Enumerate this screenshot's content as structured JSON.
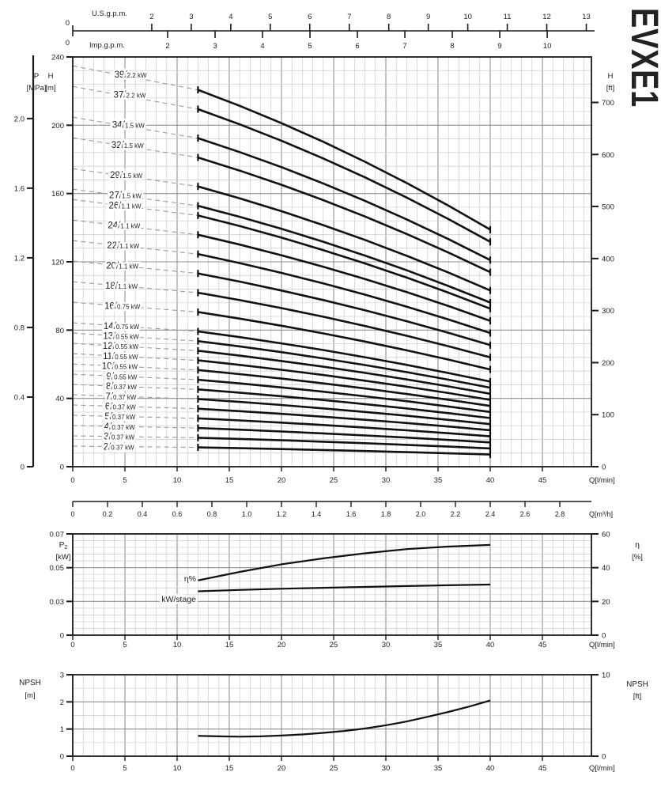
{
  "title": "EVXE1",
  "colors": {
    "curve": "#111111",
    "grid_minor": "#cccccc",
    "grid_major": "#909090",
    "dash": "#9a9a9a",
    "axis": "#1a1a1a",
    "text": "#222222"
  },
  "top_scales": {
    "us": {
      "label": "U.S.g.p.m.",
      "zero": "0",
      "ticks": [
        "2",
        "3",
        "4",
        "5",
        "6",
        "7",
        "8",
        "9",
        "10",
        "11",
        "12",
        "13"
      ],
      "lmin_per_unit": 3.785
    },
    "imp": {
      "label": "Imp.g.p.m.",
      "zero": "0",
      "ticks": [
        "2",
        "3",
        "4",
        "5",
        "6",
        "7",
        "8",
        "9",
        "10"
      ],
      "lmin_per_unit": 4.546
    }
  },
  "chart_data": [
    {
      "id": "head_curves",
      "type": "line",
      "title": "EVXE1",
      "x_axis": {
        "label": "Q[l/min]",
        "ticks": [
          "0",
          "5",
          "10",
          "15",
          "20",
          "25",
          "30",
          "35",
          "40",
          "45"
        ],
        "range": [
          0,
          49.7
        ]
      },
      "x_axis_secondary": {
        "label": "Q[m³/h]",
        "ticks": [
          "0",
          "0.2",
          "0.4",
          "0.6",
          "0.8",
          "1.0",
          "1.2",
          "1.4",
          "1.6",
          "1.8",
          "2.0",
          "2.2",
          "2.4",
          "2.6",
          "2.8"
        ],
        "lmin_per_unit": 16.667
      },
      "y_axis": {
        "name": "H",
        "unit": "[m]",
        "ticks": [
          "0",
          "40",
          "80",
          "120",
          "160",
          "200",
          "240"
        ],
        "range": [
          0,
          240
        ]
      },
      "y_axis_pressure": {
        "name": "P",
        "unit": "[MPa]",
        "ticks": [
          "0",
          "0.4",
          "0.8",
          "1.2",
          "1.6",
          "2.0"
        ],
        "m_per_unit": 101.97
      },
      "y_axis_right": {
        "name": "H",
        "unit": "[ft]",
        "ticks": [
          "0",
          "100",
          "200",
          "300",
          "400",
          "500",
          "600",
          "700"
        ],
        "m_per_unit": 0.3048
      },
      "q_points": [
        12,
        16,
        20,
        24,
        28,
        32,
        36,
        40
      ],
      "head_per_stage": [
        5.66,
        5.42,
        5.16,
        4.88,
        4.58,
        4.26,
        3.92,
        3.56
      ],
      "shutoff_head_per_stage": 6.02,
      "curve_label_unit": "kW",
      "curves": [
        {
          "stages": 39,
          "power_kw": "2.2"
        },
        {
          "stages": 37,
          "power_kw": "2.2"
        },
        {
          "stages": 34,
          "power_kw": "1.5"
        },
        {
          "stages": 32,
          "power_kw": "1.5"
        },
        {
          "stages": 29,
          "power_kw": "1.5"
        },
        {
          "stages": 27,
          "power_kw": "1.5"
        },
        {
          "stages": 26,
          "power_kw": "1.1"
        },
        {
          "stages": 24,
          "power_kw": "1.1"
        },
        {
          "stages": 22,
          "power_kw": "1.1"
        },
        {
          "stages": 20,
          "power_kw": "1.1"
        },
        {
          "stages": 18,
          "power_kw": "1.1"
        },
        {
          "stages": 16,
          "power_kw": "0.75"
        },
        {
          "stages": 14,
          "power_kw": "0.75"
        },
        {
          "stages": 13,
          "power_kw": "0.55"
        },
        {
          "stages": 12,
          "power_kw": "0.55"
        },
        {
          "stages": 11,
          "power_kw": "0.55"
        },
        {
          "stages": 10,
          "power_kw": "0.55"
        },
        {
          "stages": 9,
          "power_kw": "0.55"
        },
        {
          "stages": 8,
          "power_kw": "0.37"
        },
        {
          "stages": 7,
          "power_kw": "0.37"
        },
        {
          "stages": 6,
          "power_kw": "0.37"
        },
        {
          "stages": 5,
          "power_kw": "0.37"
        },
        {
          "stages": 4,
          "power_kw": "0.37"
        },
        {
          "stages": 3,
          "power_kw": "0.37"
        },
        {
          "stages": 2,
          "power_kw": "0.37"
        }
      ]
    },
    {
      "id": "power_efficiency",
      "type": "line",
      "x_axis": {
        "label": "Q[l/min]",
        "ticks": [
          "0",
          "5",
          "10",
          "15",
          "20",
          "25",
          "30",
          "35",
          "40",
          "45"
        ]
      },
      "y_axis": {
        "name": "P",
        "sub": "2",
        "unit": "[kW]",
        "ticks": [
          "0",
          "0.03",
          "0.05",
          "0.07"
        ]
      },
      "y_axis_right": {
        "name": "η",
        "unit": "[%]",
        "ticks": [
          "0",
          "20",
          "40",
          "60"
        ],
        "range": [
          0,
          60
        ]
      },
      "series": [
        {
          "name": "η%",
          "axis": "right",
          "x": [
            12,
            16,
            20,
            24,
            28,
            32,
            36,
            40
          ],
          "y": [
            32.5,
            37.5,
            42,
            45.5,
            48.5,
            51,
            52.5,
            53.5
          ]
        },
        {
          "name": "kW/stage",
          "axis": "left",
          "x": [
            12,
            16,
            20,
            24,
            28,
            32,
            36,
            40
          ],
          "y": [
            0.036,
            0.0368,
            0.0375,
            0.0381,
            0.0386,
            0.0391,
            0.0396,
            0.04
          ]
        }
      ]
    },
    {
      "id": "npsh",
      "type": "line",
      "x_axis": {
        "label": "Q[l/min]",
        "ticks": [
          "0",
          "5",
          "10",
          "15",
          "20",
          "25",
          "30",
          "35",
          "40",
          "45"
        ]
      },
      "y_axis": {
        "name": "NPSH",
        "unit": "[m]",
        "ticks": [
          "0",
          "1",
          "2",
          "3"
        ],
        "range": [
          0,
          3
        ]
      },
      "y_axis_right": {
        "name": "NPSH",
        "unit": "[ft]",
        "ticks": [
          "0",
          "10"
        ],
        "m_per_unit": 0.3048
      },
      "series": [
        {
          "name": "NPSH",
          "x": [
            12,
            14,
            16,
            18,
            20,
            22,
            24,
            26,
            28,
            30,
            32,
            34,
            36,
            38,
            40
          ],
          "y": [
            0.75,
            0.73,
            0.72,
            0.73,
            0.76,
            0.8,
            0.86,
            0.93,
            1.02,
            1.14,
            1.28,
            1.45,
            1.63,
            1.83,
            2.05
          ]
        }
      ]
    }
  ]
}
